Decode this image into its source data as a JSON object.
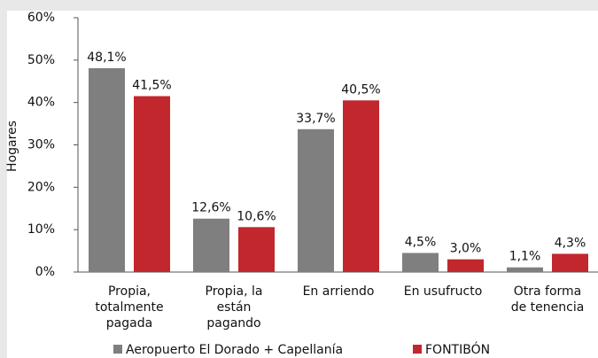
{
  "chart_data": {
    "type": "bar",
    "y_label": "Hogares",
    "categories": [
      [
        "Propia,",
        "totalmente",
        "pagada"
      ],
      [
        "Propia, la",
        "están",
        "pagando"
      ],
      [
        "En arriendo"
      ],
      [
        "En usufructo"
      ],
      [
        "Otra forma",
        "de tenencia"
      ]
    ],
    "series": [
      {
        "name": "Aeropuerto El Dorado + Capellanía",
        "color": "#7f7f7f",
        "values": [
          48.1,
          12.6,
          33.7,
          4.5,
          1.1
        ],
        "value_labels": [
          "48,1%",
          "12,6%",
          "33,7%",
          "4,5%",
          "1,1%"
        ]
      },
      {
        "name": "FONTIBÓN",
        "color": "#c1272d",
        "values": [
          41.5,
          10.6,
          40.5,
          3.0,
          4.3
        ],
        "value_labels": [
          "41,5%",
          "10,6%",
          "40,5%",
          "3,0%",
          "4,3%"
        ]
      }
    ],
    "ylim": [
      0,
      60
    ],
    "yticks": [
      {
        "value": 0,
        "label": "0%"
      },
      {
        "value": 10,
        "label": "10%"
      },
      {
        "value": 20,
        "label": "20%"
      },
      {
        "value": 30,
        "label": "30%"
      },
      {
        "value": 40,
        "label": "40%"
      },
      {
        "value": 50,
        "label": "50%"
      },
      {
        "value": 60,
        "label": "60%"
      }
    ]
  }
}
